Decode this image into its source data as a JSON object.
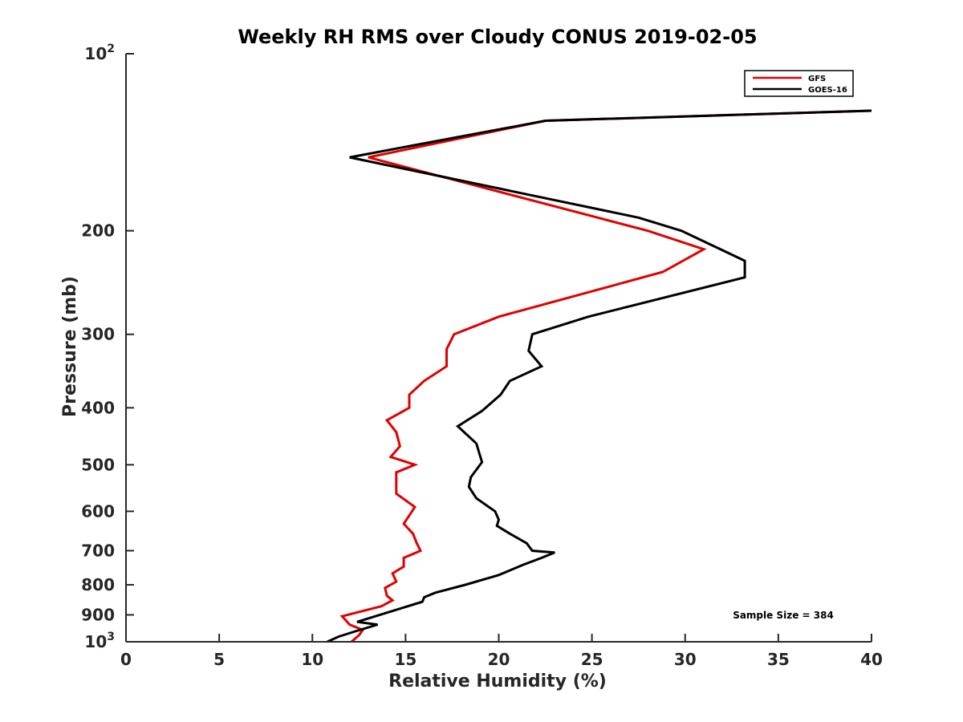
{
  "chart_data": {
    "type": "line",
    "title": "Weekly RH RMS over Cloudy CONUS 2019-02-05",
    "xlabel": "Relative Humidity (%)",
    "ylabel": "Pressure (mb)",
    "xlim": [
      0,
      40
    ],
    "ylim": [
      100,
      1000
    ],
    "y_scale": "log",
    "y_reversed": true,
    "x_ticks": [
      {
        "value": 0,
        "label": "0"
      },
      {
        "value": 5,
        "label": "5"
      },
      {
        "value": 10,
        "label": "10"
      },
      {
        "value": 15,
        "label": "15"
      },
      {
        "value": 20,
        "label": "20"
      },
      {
        "value": 25,
        "label": "25"
      },
      {
        "value": 30,
        "label": "30"
      },
      {
        "value": 35,
        "label": "35"
      },
      {
        "value": 40,
        "label": "40"
      }
    ],
    "y_ticks": [
      {
        "value": 100,
        "base": "10",
        "exp": "2"
      },
      {
        "value": 200,
        "label": "200"
      },
      {
        "value": 300,
        "label": "300"
      },
      {
        "value": 400,
        "label": "400"
      },
      {
        "value": 500,
        "label": "500"
      },
      {
        "value": 600,
        "label": "600"
      },
      {
        "value": 700,
        "label": "700"
      },
      {
        "value": 800,
        "label": "800"
      },
      {
        "value": 900,
        "label": "900"
      },
      {
        "value": 1000,
        "base": "10",
        "exp": "3"
      }
    ],
    "legend_position": "top-right",
    "series": [
      {
        "name": "GFS",
        "color": "#e00000",
        "points": [
          [
            40.0,
            125
          ],
          [
            22.5,
            130
          ],
          [
            13.0,
            150
          ],
          [
            28.0,
            200
          ],
          [
            31.0,
            215
          ],
          [
            28.8,
            235
          ],
          [
            20.0,
            280
          ],
          [
            17.6,
            300
          ],
          [
            17.2,
            318
          ],
          [
            17.2,
            340
          ],
          [
            16.0,
            360
          ],
          [
            15.2,
            380
          ],
          [
            15.2,
            400
          ],
          [
            14.0,
            420
          ],
          [
            14.5,
            440
          ],
          [
            14.7,
            465
          ],
          [
            14.2,
            485
          ],
          [
            15.5,
            500
          ],
          [
            14.5,
            515
          ],
          [
            14.5,
            560
          ],
          [
            15.5,
            590
          ],
          [
            15.2,
            610
          ],
          [
            14.9,
            630
          ],
          [
            15.4,
            655
          ],
          [
            15.6,
            680
          ],
          [
            15.8,
            700
          ],
          [
            14.9,
            720
          ],
          [
            14.9,
            745
          ],
          [
            14.3,
            765
          ],
          [
            14.5,
            790
          ],
          [
            13.9,
            810
          ],
          [
            14.0,
            835
          ],
          [
            14.3,
            850
          ],
          [
            13.7,
            870
          ],
          [
            11.6,
            905
          ],
          [
            12.0,
            935
          ],
          [
            12.7,
            955
          ],
          [
            12.5,
            975
          ],
          [
            12.1,
            1000
          ]
        ]
      },
      {
        "name": "GOES-16",
        "color": "#000000",
        "points": [
          [
            40.0,
            125
          ],
          [
            22.5,
            130
          ],
          [
            12.0,
            150
          ],
          [
            27.5,
            190
          ],
          [
            29.8,
            200
          ],
          [
            33.2,
            225
          ],
          [
            33.2,
            240
          ],
          [
            24.8,
            280
          ],
          [
            21.8,
            300
          ],
          [
            21.6,
            320
          ],
          [
            22.3,
            340
          ],
          [
            20.6,
            360
          ],
          [
            20.1,
            380
          ],
          [
            19.1,
            405
          ],
          [
            17.8,
            430
          ],
          [
            18.8,
            460
          ],
          [
            19.1,
            495
          ],
          [
            18.5,
            525
          ],
          [
            18.4,
            545
          ],
          [
            18.8,
            570
          ],
          [
            19.8,
            600
          ],
          [
            20.0,
            620
          ],
          [
            19.9,
            635
          ],
          [
            20.6,
            655
          ],
          [
            21.5,
            680
          ],
          [
            21.8,
            700
          ],
          [
            23.0,
            705
          ],
          [
            22.3,
            720
          ],
          [
            21.3,
            740
          ],
          [
            20.0,
            770
          ],
          [
            18.2,
            800
          ],
          [
            16.6,
            825
          ],
          [
            16.0,
            840
          ],
          [
            15.9,
            855
          ],
          [
            12.4,
            925
          ],
          [
            13.5,
            935
          ],
          [
            12.3,
            960
          ],
          [
            11.4,
            980
          ],
          [
            10.8,
            1000
          ]
        ]
      }
    ],
    "annotations": [
      "Sample Size = 384"
    ]
  }
}
